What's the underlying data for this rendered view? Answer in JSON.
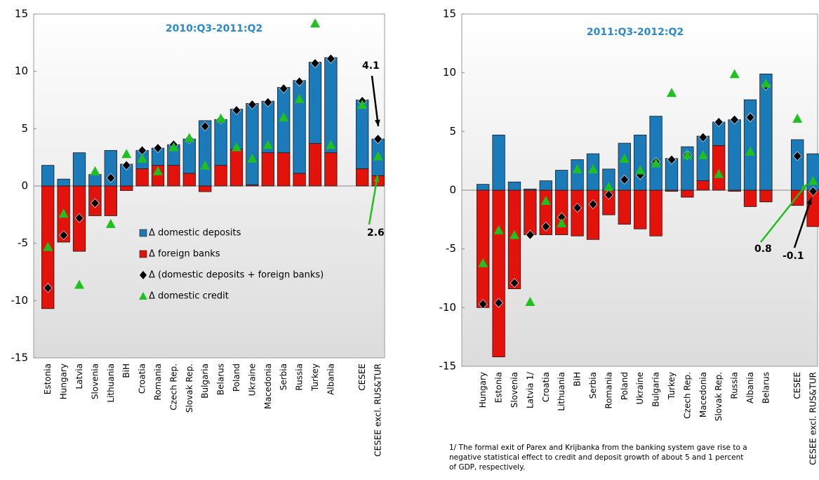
{
  "chart_data": [
    {
      "type": "bar",
      "title": "2010:Q3-2011:Q2",
      "categories": [
        "Estonia",
        "Hungary",
        "Latvia",
        "Slovenia",
        "Lithuania",
        "BiH",
        "Croatia",
        "Romania",
        "Czech Rep.",
        "Slovak Rep.",
        "Bulgaria",
        "Belarus",
        "Poland",
        "Ukraine",
        "Macedonia",
        "Serbia",
        "Russia",
        "Turkey",
        "Albania",
        null,
        "CESEE",
        "CESEE excl. RUS&TUR"
      ],
      "series": [
        {
          "name": "Δ domestic deposits",
          "color": "#1b7ab8",
          "marker": "bar",
          "values": [
            1.8,
            0.6,
            2.9,
            1.0,
            3.1,
            1.9,
            1.6,
            1.5,
            1.8,
            3.0,
            5.7,
            4.0,
            3.5,
            7.1,
            4.5,
            5.7,
            8.1,
            7.1,
            8.3,
            null,
            6.0,
            3.2
          ]
        },
        {
          "name": "Δ foreign banks",
          "color": "#e3120b",
          "marker": "bar",
          "values": [
            -10.7,
            -4.9,
            -5.7,
            -2.6,
            -2.6,
            -0.4,
            1.5,
            1.8,
            1.8,
            1.1,
            -0.5,
            1.8,
            3.2,
            0.1,
            2.9,
            2.9,
            1.1,
            3.7,
            2.9,
            null,
            1.5,
            0.9
          ]
        },
        {
          "name": "Δ (domestic deposits + foreign banks)",
          "color": "#000000",
          "marker": "diamond",
          "values": [
            -8.9,
            -4.3,
            -2.8,
            -1.5,
            0.7,
            1.8,
            3.1,
            3.3,
            3.6,
            4.1,
            5.2,
            5.8,
            6.6,
            7.1,
            7.3,
            8.5,
            9.1,
            10.7,
            11.1,
            null,
            7.4,
            4.1
          ]
        },
        {
          "name": "Δ domestic credit",
          "color": "#1fc11f",
          "marker": "triangle",
          "values": [
            -5.3,
            -2.4,
            -8.6,
            1.3,
            -3.3,
            2.8,
            2.4,
            1.3,
            3.4,
            4.2,
            1.8,
            5.9,
            3.4,
            2.4,
            3.6,
            6.0,
            7.6,
            14.2,
            3.6,
            null,
            7.1,
            2.6
          ]
        }
      ],
      "ylim": [
        -15,
        15
      ],
      "yticks": [
        -15,
        -10,
        -5,
        0,
        5,
        10,
        15
      ],
      "legend": true,
      "annotations": [
        {
          "text": "4.1",
          "color": "#000000"
        },
        {
          "text": "2.6",
          "color": "#1fc11f"
        }
      ]
    },
    {
      "type": "bar",
      "title": "2011:Q3-2012:Q2",
      "categories": [
        "Hungary",
        "Estonia",
        "Slovenia",
        "Latvia 1/",
        "Croatia",
        "Lithuania",
        "BiH",
        "Serbia",
        "Romania",
        "Poland",
        "Ukraine",
        "Bulgaria",
        "Turkey",
        "Czech Rep.",
        "Macedonia",
        "Slovak Rep.",
        "Russia",
        "Albania",
        "Belarus",
        null,
        "CESEE",
        "CESEE excl. RUS&TUR"
      ],
      "series": [
        {
          "color": "#1b7ab8",
          "marker": "bar",
          "values": [
            0.5,
            4.7,
            0.7,
            0.1,
            0.8,
            1.7,
            2.6,
            3.1,
            1.8,
            4.0,
            4.7,
            6.3,
            2.7,
            3.7,
            3.8,
            2.0,
            6.0,
            7.7,
            9.9,
            null,
            4.3,
            3.1
          ]
        },
        {
          "color": "#e3120b",
          "marker": "bar",
          "values": [
            -10.0,
            -14.2,
            -8.4,
            -3.8,
            -3.8,
            -3.8,
            -3.9,
            -4.2,
            -2.1,
            -2.9,
            -3.3,
            -3.9,
            -0.1,
            -0.6,
            0.8,
            3.8,
            -0.1,
            -1.4,
            -1.0,
            null,
            -1.3,
            -3.1
          ]
        },
        {
          "color": "#000000",
          "marker": "diamond",
          "values": [
            -9.7,
            -9.6,
            -7.9,
            -3.8,
            -3.1,
            -2.3,
            -1.5,
            -1.2,
            -0.4,
            0.9,
            1.3,
            2.4,
            2.6,
            3.0,
            4.5,
            5.8,
            6.0,
            6.2,
            8.9,
            null,
            2.9,
            -0.1
          ]
        },
        {
          "color": "#1fc11f",
          "marker": "triangle",
          "values": [
            -6.2,
            -3.4,
            -3.8,
            -9.5,
            -0.9,
            -2.8,
            1.8,
            1.8,
            0.3,
            2.7,
            1.7,
            2.3,
            8.3,
            3.0,
            3.0,
            1.4,
            9.9,
            3.3,
            9.1,
            null,
            6.1,
            0.8
          ]
        }
      ],
      "ylim": [
        -15,
        15
      ],
      "yticks": [
        -15,
        -10,
        -5,
        0,
        5,
        10,
        15
      ],
      "legend": false,
      "annotations": [
        {
          "text": "0.8",
          "color": "#1fc11f"
        },
        {
          "text": "-0.1",
          "color": "#000000"
        }
      ]
    }
  ],
  "footnote": [
    "1/ The formal exit of Parex and Krijbanka from the banking system gave rise to a",
    "negative statistical effect to credit and deposit growth of about 5 and 1 percent",
    "of GDP, respectively."
  ]
}
